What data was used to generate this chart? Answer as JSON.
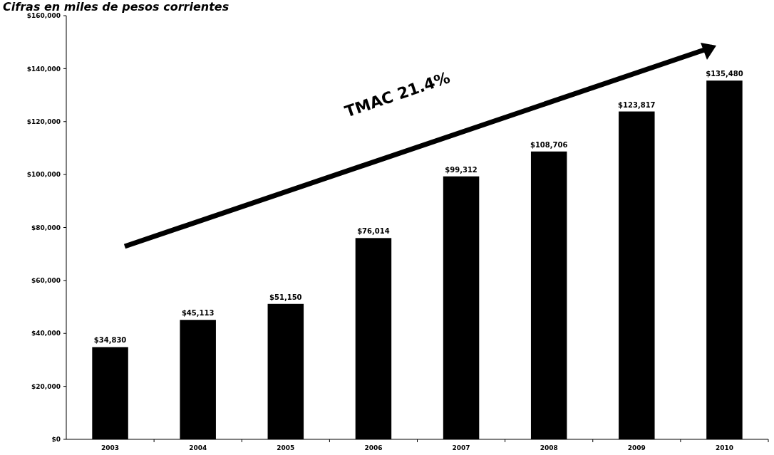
{
  "chart_data": {
    "type": "bar",
    "title": "Cifras en miles de pesos corrientes",
    "categories": [
      "2003",
      "2004",
      "2005",
      "2006",
      "2007",
      "2008",
      "2009",
      "2010"
    ],
    "values": [
      34830,
      45113,
      51150,
      76014,
      99312,
      108706,
      123817,
      135480
    ],
    "value_labels": [
      "$34,830",
      "$45,113",
      "$51,150",
      "$76,014",
      "$99,312",
      "$108,706",
      "$123,817",
      "$135,480"
    ],
    "color": "#000000",
    "ylim": [
      0,
      160000
    ],
    "yticks": [
      {
        "value": 0,
        "label": "$0"
      },
      {
        "value": 20000,
        "label": "$20,000"
      },
      {
        "value": 40000,
        "label": "$40,000"
      },
      {
        "value": 60000,
        "label": "$60,000"
      },
      {
        "value": 80000,
        "label": "$80,000"
      },
      {
        "value": 100000,
        "label": "$100,000"
      },
      {
        "value": 120000,
        "label": "$120,000"
      },
      {
        "value": 140000,
        "label": "$140,000"
      },
      {
        "value": 160000,
        "label": "$160,000"
      }
    ],
    "annotations": [
      "TMAC 21.4%"
    ],
    "grid": false
  }
}
